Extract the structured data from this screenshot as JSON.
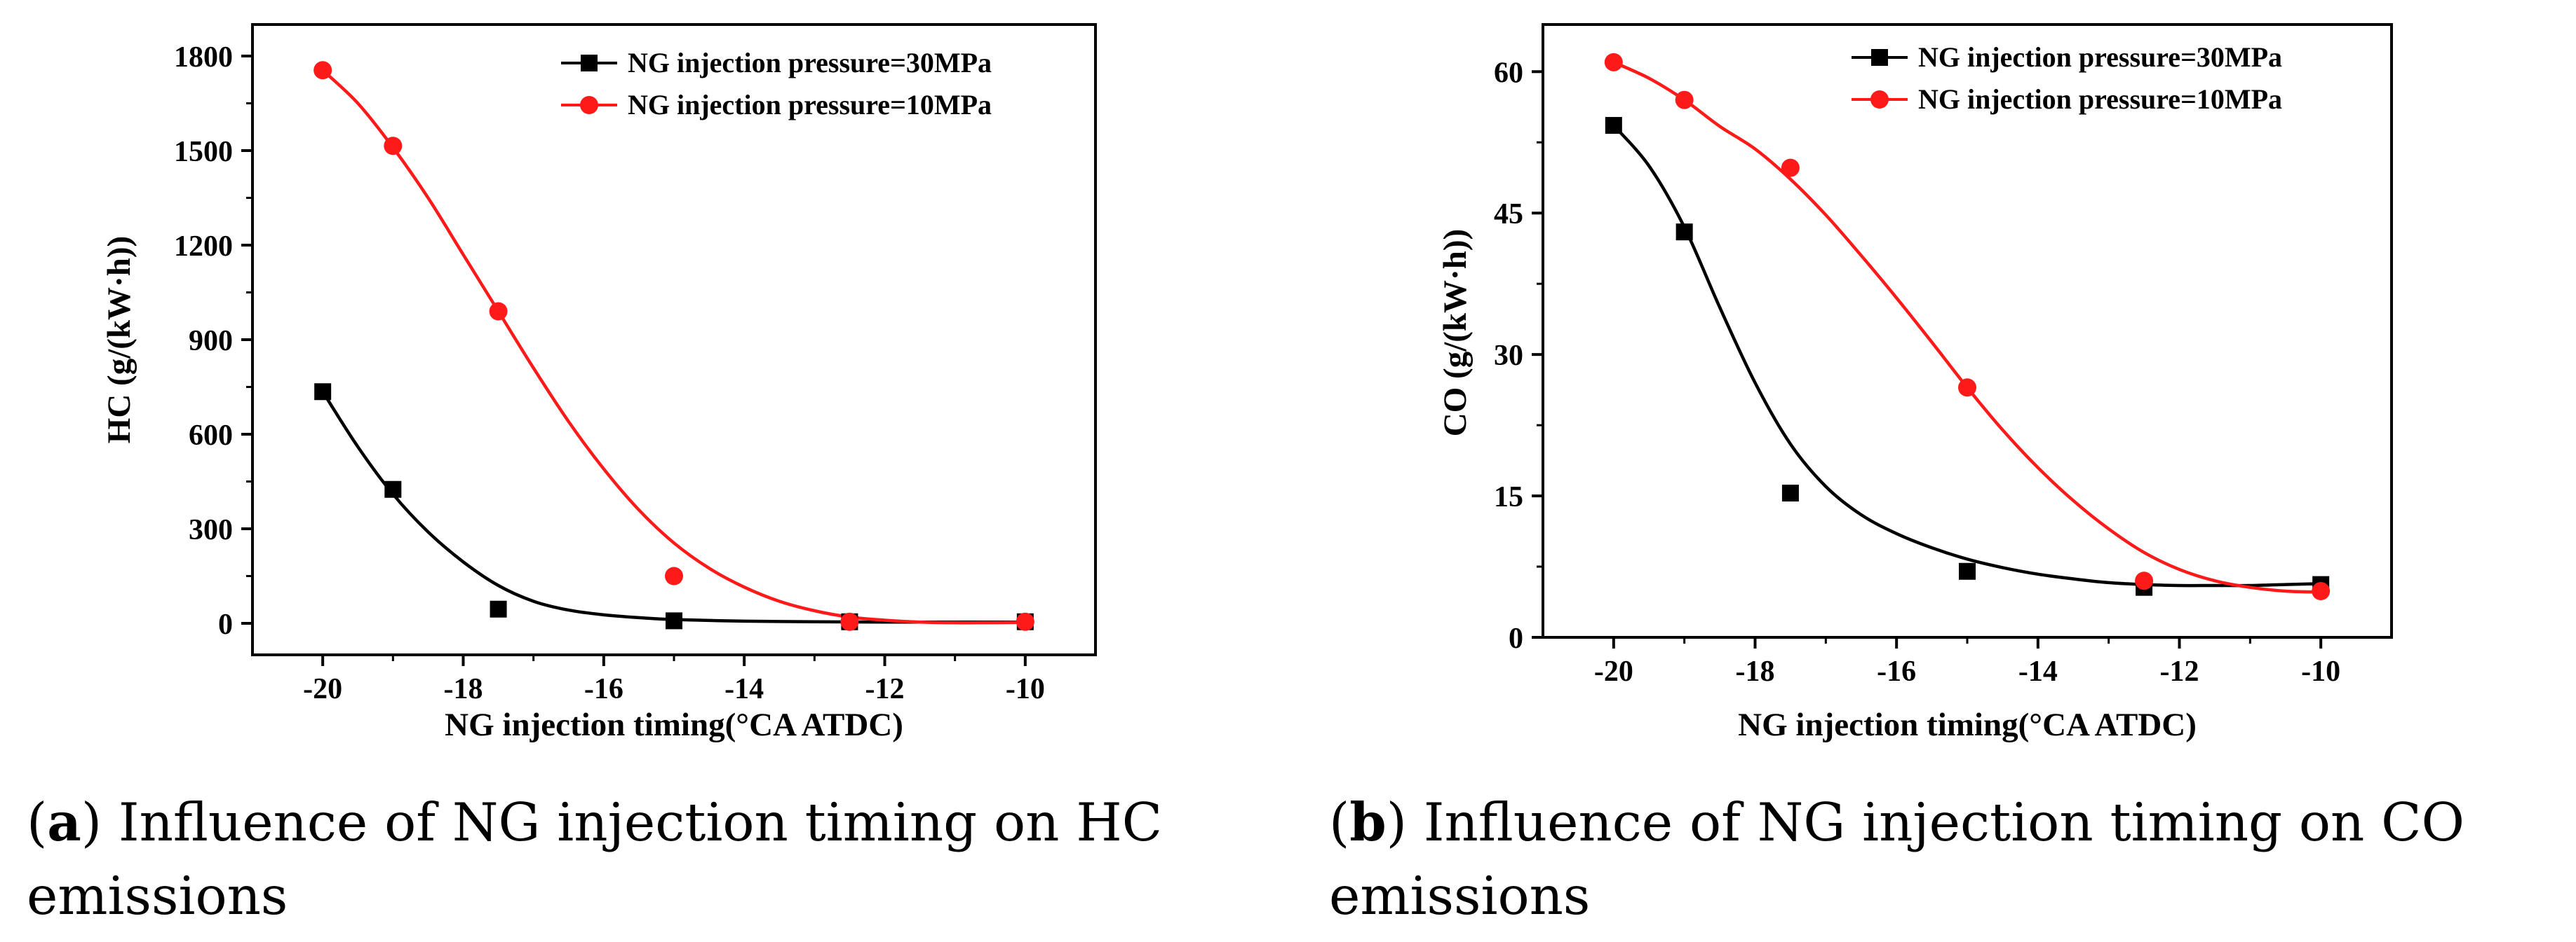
{
  "chart_data": [
    {
      "type": "line",
      "id": "hc",
      "title": "",
      "xlabel": "NG injection timing(°CA  ATDC)",
      "ylabel": "HC (g/(kW·h))",
      "xlim": [
        -21,
        -9
      ],
      "ylim": [
        -100,
        1900
      ],
      "xticks": [
        -20,
        -18,
        -16,
        -14,
        -12,
        -10
      ],
      "xtick_labels": [
        "-20",
        "-18",
        "-16",
        "-14",
        "-12",
        "-10"
      ],
      "yticks": [
        0,
        300,
        600,
        900,
        1200,
        1500,
        1800
      ],
      "ytick_labels": [
        "0",
        "300",
        "600",
        "900",
        "1200",
        "1500",
        "1800"
      ],
      "legend_position": "top-right",
      "series": [
        {
          "name": "NG injection pressure=30MPa",
          "color": "#000000",
          "marker": "square",
          "x": [
            -20,
            -19,
            -17.5,
            -15,
            -12.5,
            -10
          ],
          "y": [
            735,
            425,
            45,
            8,
            5,
            5
          ],
          "fit_x": [
            -20,
            -19.5,
            -19,
            -18.5,
            -18,
            -17.5,
            -17,
            -16.5,
            -16,
            -15.5,
            -15,
            -14,
            -13,
            -12,
            -11,
            -10
          ],
          "fit_y": [
            735,
            560,
            410,
            290,
            195,
            120,
            70,
            42,
            27,
            18,
            12,
            7,
            5,
            4,
            4,
            4
          ]
        },
        {
          "name": "NG injection pressure=10MPa",
          "color": "#ff1a1a",
          "marker": "circle",
          "x": [
            -20,
            -19,
            -17.5,
            -15,
            -12.5,
            -10
          ],
          "y": [
            1755,
            1515,
            990,
            150,
            5,
            5
          ],
          "fit_x": [
            -20,
            -19.5,
            -19,
            -18.5,
            -18,
            -17.5,
            -17,
            -16.5,
            -16,
            -15.5,
            -15,
            -14.5,
            -14,
            -13.5,
            -13,
            -12.5,
            -12,
            -11.5,
            -11,
            -10.5,
            -10
          ],
          "fit_y": [
            1755,
            1650,
            1510,
            1350,
            1170,
            990,
            810,
            640,
            490,
            360,
            255,
            175,
            115,
            70,
            40,
            20,
            10,
            4,
            2,
            2,
            3
          ]
        }
      ]
    },
    {
      "type": "line",
      "id": "co",
      "title": "",
      "xlabel": "NG injection timing(°CA  ATDC)",
      "ylabel": "CO (g/(kW·h))",
      "xlim": [
        -21,
        -9
      ],
      "ylim": [
        0,
        65
      ],
      "xticks": [
        -20,
        -18,
        -16,
        -14,
        -12,
        -10
      ],
      "xtick_labels": [
        "-20",
        "-18",
        "-16",
        "-14",
        "-12",
        "-10"
      ],
      "yticks": [
        0,
        15,
        30,
        45,
        60
      ],
      "ytick_labels": [
        "0",
        "15",
        "30",
        "45",
        "60"
      ],
      "legend_position": "top-right",
      "series": [
        {
          "name": "NG injection pressure=30MPa",
          "color": "#000000",
          "marker": "square",
          "x": [
            -20,
            -19,
            -17.5,
            -15,
            -12.5,
            -10
          ],
          "y": [
            54.3,
            43.0,
            15.3,
            7.0,
            5.3,
            5.6
          ],
          "fit_x": [
            -20,
            -19.5,
            -19,
            -18.5,
            -18,
            -17.5,
            -17,
            -16.5,
            -16,
            -15.5,
            -15,
            -14.5,
            -14,
            -13.5,
            -13,
            -12.5,
            -12,
            -11.5,
            -11,
            -10.5,
            -10
          ],
          "fit_y": [
            54.3,
            50.0,
            43.5,
            35.0,
            27.0,
            20.5,
            16.0,
            13.0,
            11.0,
            9.5,
            8.3,
            7.4,
            6.7,
            6.2,
            5.8,
            5.6,
            5.5,
            5.5,
            5.5,
            5.6,
            5.7
          ]
        },
        {
          "name": "NG injection pressure=10MPa",
          "color": "#ff1a1a",
          "marker": "circle",
          "x": [
            -20,
            -19,
            -17.5,
            -15,
            -12.5,
            -10
          ],
          "y": [
            61.0,
            57.0,
            49.8,
            26.5,
            6.0,
            4.9
          ],
          "fit_x": [
            -20,
            -19.5,
            -19,
            -18.5,
            -18,
            -17.5,
            -17,
            -16.5,
            -16,
            -15.5,
            -15,
            -14.5,
            -14,
            -13.5,
            -13,
            -12.5,
            -12,
            -11.5,
            -11,
            -10.5,
            -10
          ],
          "fit_y": [
            61.0,
            59.3,
            57.0,
            54.2,
            51.8,
            48.6,
            44.8,
            40.5,
            36.0,
            31.3,
            26.5,
            22.0,
            18.0,
            14.5,
            11.5,
            9.0,
            7.2,
            6.0,
            5.3,
            4.9,
            4.8
          ]
        }
      ]
    }
  ],
  "captions": [
    {
      "letter": "a",
      "line1_open": "(",
      "line1_close": ") Influence of NG injection timing on HC",
      "line2": "emissions"
    },
    {
      "letter": "b",
      "line1_open": "(",
      "line1_close": ") Influence of NG injection timing on CO",
      "line2": "emissions"
    }
  ]
}
